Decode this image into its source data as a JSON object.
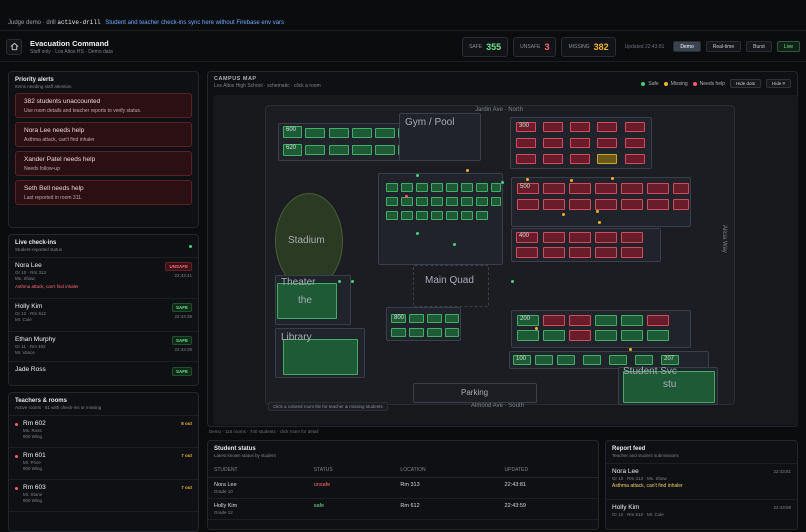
{
  "topbar": {
    "prefix": "Judge demo · drill",
    "code": "active-drill",
    "note": "Student and teacher check-ins sync here without Firebase env vars"
  },
  "header": {
    "title": "Evacuation Command",
    "subtitle": "Staff only · Los Altos HS · Demo data",
    "safe_label": "SAFE",
    "safe_value": "355",
    "unsafe_label": "UNSAFE",
    "unsafe_value": "3",
    "missing_label": "MISSING",
    "missing_value": "382",
    "updated": "Updated 22:43:81",
    "modes": [
      "Demo",
      "Real-time",
      "Burst"
    ],
    "live": "Live"
  },
  "alerts": {
    "title": "Priority alerts",
    "subtitle": "Items needing staff attention",
    "items": [
      {
        "title": "382 students unaccounted",
        "detail": "Use room details and teacher reports to verify status."
      },
      {
        "title": "Nora Lee needs help",
        "detail": "Asthma attack, can't find inhaler"
      },
      {
        "title": "Xander Patel needs help",
        "detail": "Needs follow-up"
      },
      {
        "title": "Seth Bell needs help",
        "detail": "Last reported in room 311."
      }
    ]
  },
  "checkins": {
    "title": "Live check-ins",
    "subtitle": "Student-reported status",
    "items": [
      {
        "name": "Nora Lee",
        "meta": "Gr 10 · Rm 313",
        "teacher": "Ms. Shaw",
        "badge": "UNSAFE",
        "time": "22:43:41",
        "note": "Asthma attack, can't find inhaler"
      },
      {
        "name": "Holly Kim",
        "meta": "Gr 12 · Rm 612",
        "teacher": "Mr. Cole",
        "badge": "SAFE",
        "time": "22:43:39"
      },
      {
        "name": "Ethan Murphy",
        "meta": "Gr 11 · Rm 402",
        "teacher": "Mr. Vance",
        "badge": "SAFE",
        "time": "22:43:39"
      },
      {
        "name": "Jade Ross",
        "badge": "SAFE"
      }
    ]
  },
  "teachers": {
    "title": "Teachers & rooms",
    "subtitle": "Active rooms · 61 with check-ins or missing",
    "items": [
      {
        "room": "Rm 602",
        "teacher": "Ms. Ross",
        "wing": "600 Wing",
        "count": "8 out"
      },
      {
        "room": "Rm 601",
        "teacher": "Mr. Price",
        "wing": "600 Wing",
        "count": "7 out"
      },
      {
        "room": "Rm 603",
        "teacher": "Mr. Stone",
        "wing": "600 Wing",
        "count": "7 out"
      }
    ]
  },
  "map": {
    "title": "CAMPUS MAP",
    "subtitle": "Los Altos High School · schematic · click a room",
    "legend": [
      "Safe",
      "Missing",
      "Needs help"
    ],
    "btn_dots": "Hide dots",
    "btn_hide": "Hide #",
    "north": "Jardin Ave · North",
    "south": "Almond Ave · South",
    "east": "Alicia Way",
    "gym": "Gym / Pool",
    "stadium": "Stadium",
    "theater": "Theater",
    "theater2": "the",
    "library": "Library",
    "quad": "Main Quad",
    "parking": "Parking",
    "svc": "Student Svc",
    "svc2": "stu",
    "hint": "Click a colored room tile for teacher & missing students",
    "footer": "Demo · 118 rooms · 740 students · click room for detail",
    "room_labels": [
      "600",
      "620",
      "300",
      "500",
      "400",
      "200",
      "100",
      "800",
      "207"
    ]
  },
  "status": {
    "title": "Student status",
    "subtitle": "Latest known status by student",
    "headers": [
      "STUDENT",
      "STATUS",
      "LOCATION",
      "UPDATED"
    ],
    "rows": [
      {
        "name": "Nora Lee",
        "grade": "Grade 10",
        "status": "unsafe",
        "loc": "Rm 313",
        "time": "22:43:81"
      },
      {
        "name": "Holly Kim",
        "grade": "Grade 12",
        "status": "safe",
        "loc": "Rm 612",
        "time": "22:43:59"
      }
    ]
  },
  "feed": {
    "title": "Report feed",
    "subtitle": "Teacher and student submissions",
    "items": [
      {
        "name": "Nora Lee",
        "meta": "Gr 10 · Rm 313 · Ms. Shaw",
        "note": "Asthma attack, can't find inhaler",
        "time": "22:43:81"
      },
      {
        "name": "Holly Kim",
        "meta": "Gr 12 · Rm 612 · Mr. Cole",
        "time": "22:43:59"
      }
    ]
  },
  "colors": {
    "safe": "#47d17a",
    "missing": "#f0b330",
    "needs_help": "#ff5a6e",
    "accent": "#6ea8ff"
  }
}
